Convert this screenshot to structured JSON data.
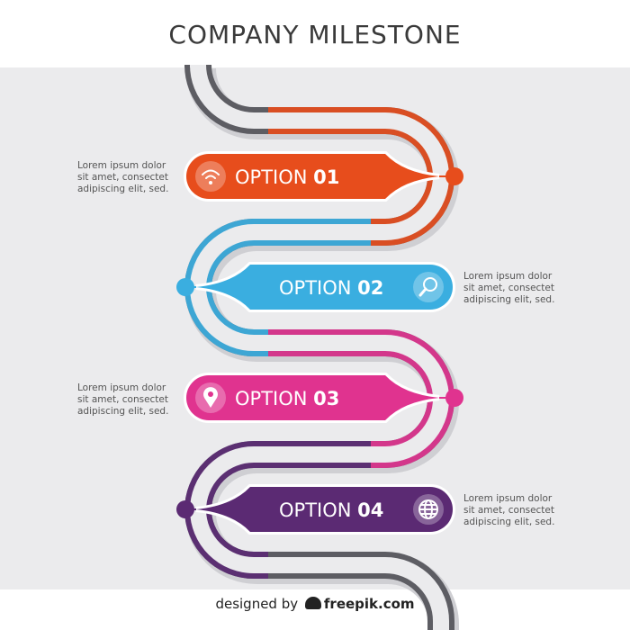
{
  "title": "COMPANY MILESTONE",
  "milestones": [
    {
      "word": "OPTION",
      "number": "01",
      "icon": "wifi-icon",
      "color": "#e74d1c",
      "desc": [
        "Lorem ipsum dolor",
        "sit amet, consectet",
        "adipiscing elit, sed."
      ]
    },
    {
      "word": "OPTION",
      "number": "02",
      "icon": "search-icon",
      "color": "#3aaee0",
      "desc": [
        "Lorem ipsum dolor",
        "sit amet, consectet",
        "adipiscing elit, sed."
      ]
    },
    {
      "word": "OPTION",
      "number": "03",
      "icon": "location-pin-icon",
      "color": "#e0338f",
      "desc": [
        "Lorem ipsum dolor",
        "sit amet, consectet",
        "adipiscing elit, sed."
      ]
    },
    {
      "word": "OPTION",
      "number": "04",
      "icon": "globe-icon",
      "color": "#5b2a73",
      "desc": [
        "Lorem ipsum dolor",
        "sit amet, consectet",
        "adipiscing elit, sed."
      ]
    }
  ],
  "road_color": "#5d5d63",
  "footer": {
    "prefix": "designed by",
    "brand": "freepik.com"
  }
}
